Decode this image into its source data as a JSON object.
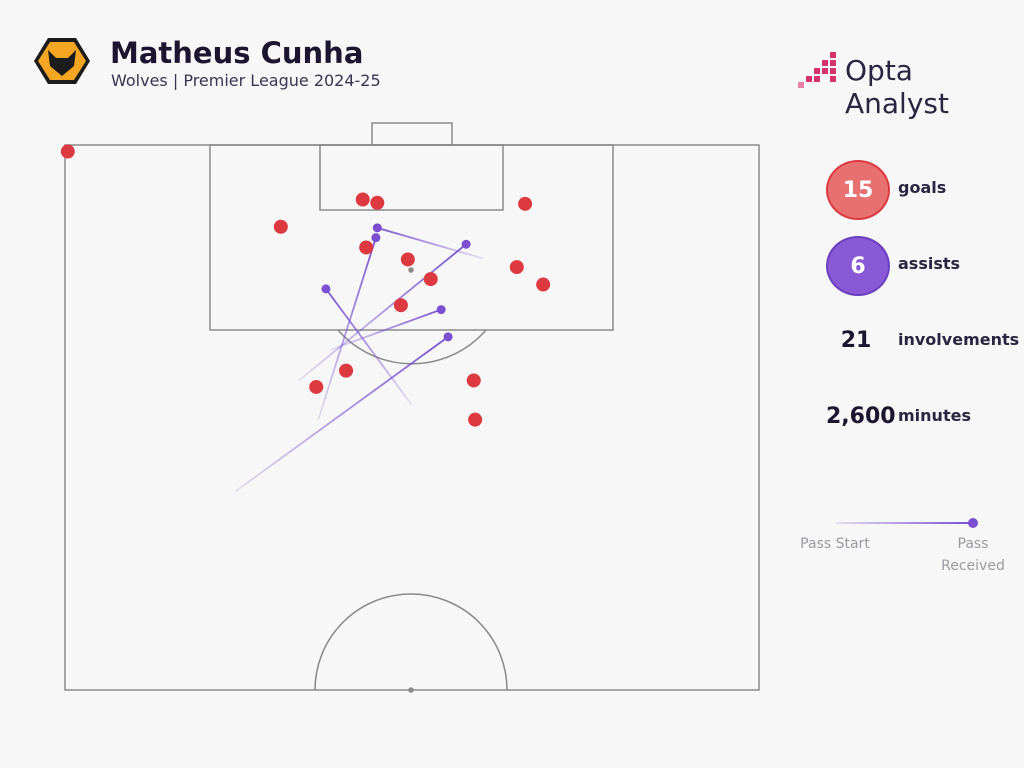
{
  "header": {
    "title": "Matheus Cunha",
    "subtitle": "Wolves | Premier League 2024-25",
    "brand": "Opta Analyst"
  },
  "chart_data": {
    "type": "scatter",
    "xlim": [
      0,
      100
    ],
    "ylim": [
      0,
      50
    ],
    "goals": {
      "name": "goals",
      "color": "#dc3a40",
      "x": [
        0.4,
        42.9,
        45.0,
        66.3,
        31.1,
        43.4,
        49.4,
        65.1,
        52.7,
        68.9,
        48.4,
        40.5,
        36.2,
        58.9,
        59.1
      ],
      "y": [
        0.6,
        5.0,
        5.3,
        5.4,
        7.5,
        9.4,
        10.5,
        11.2,
        12.3,
        12.8,
        14.7,
        20.7,
        22.2,
        21.6,
        25.2
      ]
    },
    "assists": {
      "name": "assists",
      "color": "#7b4fd0",
      "x_start": [
        60.2,
        36.5,
        33.7,
        49.9,
        38.2,
        24.5
      ],
      "y_start": [
        10.4,
        25.2,
        21.6,
        23.8,
        18.8,
        31.8
      ],
      "x_end": [
        45.0,
        44.8,
        57.8,
        37.6,
        54.2,
        55.2
      ],
      "y_end": [
        7.6,
        8.5,
        9.1,
        13.2,
        15.1,
        17.6
      ]
    },
    "stats": {
      "values": [
        15,
        6,
        21,
        2600
      ],
      "value_labels": [
        "15",
        "6",
        "21",
        "2,600"
      ],
      "labels": [
        "goals",
        "assists",
        "involvements",
        "minutes"
      ]
    },
    "legend": {
      "start": "Pass Start",
      "end": "Pass Received"
    }
  }
}
